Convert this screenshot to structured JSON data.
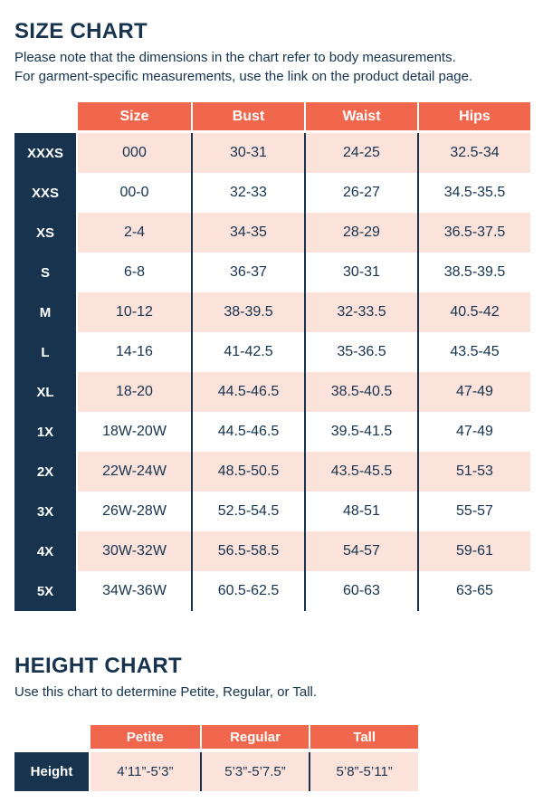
{
  "colors": {
    "navy": "#17334e",
    "coral": "#f0674e",
    "pink": "#fbe2db",
    "white": "#ffffff"
  },
  "size_chart": {
    "title": "SIZE CHART",
    "note_line1": "Please note that the dimensions in the chart refer to body measurements.",
    "note_line2": "For garment-specific measurements, use the link on the product detail page.",
    "columns": [
      "Size",
      "Bust",
      "Waist",
      "Hips"
    ],
    "rows": [
      {
        "label": "XXXS",
        "size": "000",
        "bust": "30-31",
        "waist": "24-25",
        "hips": "32.5-34"
      },
      {
        "label": "XXS",
        "size": "00-0",
        "bust": "32-33",
        "waist": "26-27",
        "hips": "34.5-35.5"
      },
      {
        "label": "XS",
        "size": "2-4",
        "bust": "34-35",
        "waist": "28-29",
        "hips": "36.5-37.5"
      },
      {
        "label": "S",
        "size": "6-8",
        "bust": "36-37",
        "waist": "30-31",
        "hips": "38.5-39.5"
      },
      {
        "label": "M",
        "size": "10-12",
        "bust": "38-39.5",
        "waist": "32-33.5",
        "hips": "40.5-42"
      },
      {
        "label": "L",
        "size": "14-16",
        "bust": "41-42.5",
        "waist": "35-36.5",
        "hips": "43.5-45"
      },
      {
        "label": "XL",
        "size": "18-20",
        "bust": "44.5-46.5",
        "waist": "38.5-40.5",
        "hips": "47-49"
      },
      {
        "label": "1X",
        "size": "18W-20W",
        "bust": "44.5-46.5",
        "waist": "39.5-41.5",
        "hips": "47-49"
      },
      {
        "label": "2X",
        "size": "22W-24W",
        "bust": "48.5-50.5",
        "waist": "43.5-45.5",
        "hips": "51-53"
      },
      {
        "label": "3X",
        "size": "26W-28W",
        "bust": "52.5-54.5",
        "waist": "48-51",
        "hips": "55-57"
      },
      {
        "label": "4X",
        "size": "30W-32W",
        "bust": "56.5-58.5",
        "waist": "54-57",
        "hips": "59-61"
      },
      {
        "label": "5X",
        "size": "34W-36W",
        "bust": "60.5-62.5",
        "waist": "60-63",
        "hips": "63-65"
      }
    ]
  },
  "height_chart": {
    "title": "HEIGHT CHART",
    "note": "Use this chart to determine Petite, Regular, or Tall.",
    "columns": [
      "Petite",
      "Regular",
      "Tall"
    ],
    "row_label": "Height",
    "values": [
      "4’11”-5’3”",
      "5’3”-5’7.5”",
      "5’8”-5’11”"
    ]
  }
}
